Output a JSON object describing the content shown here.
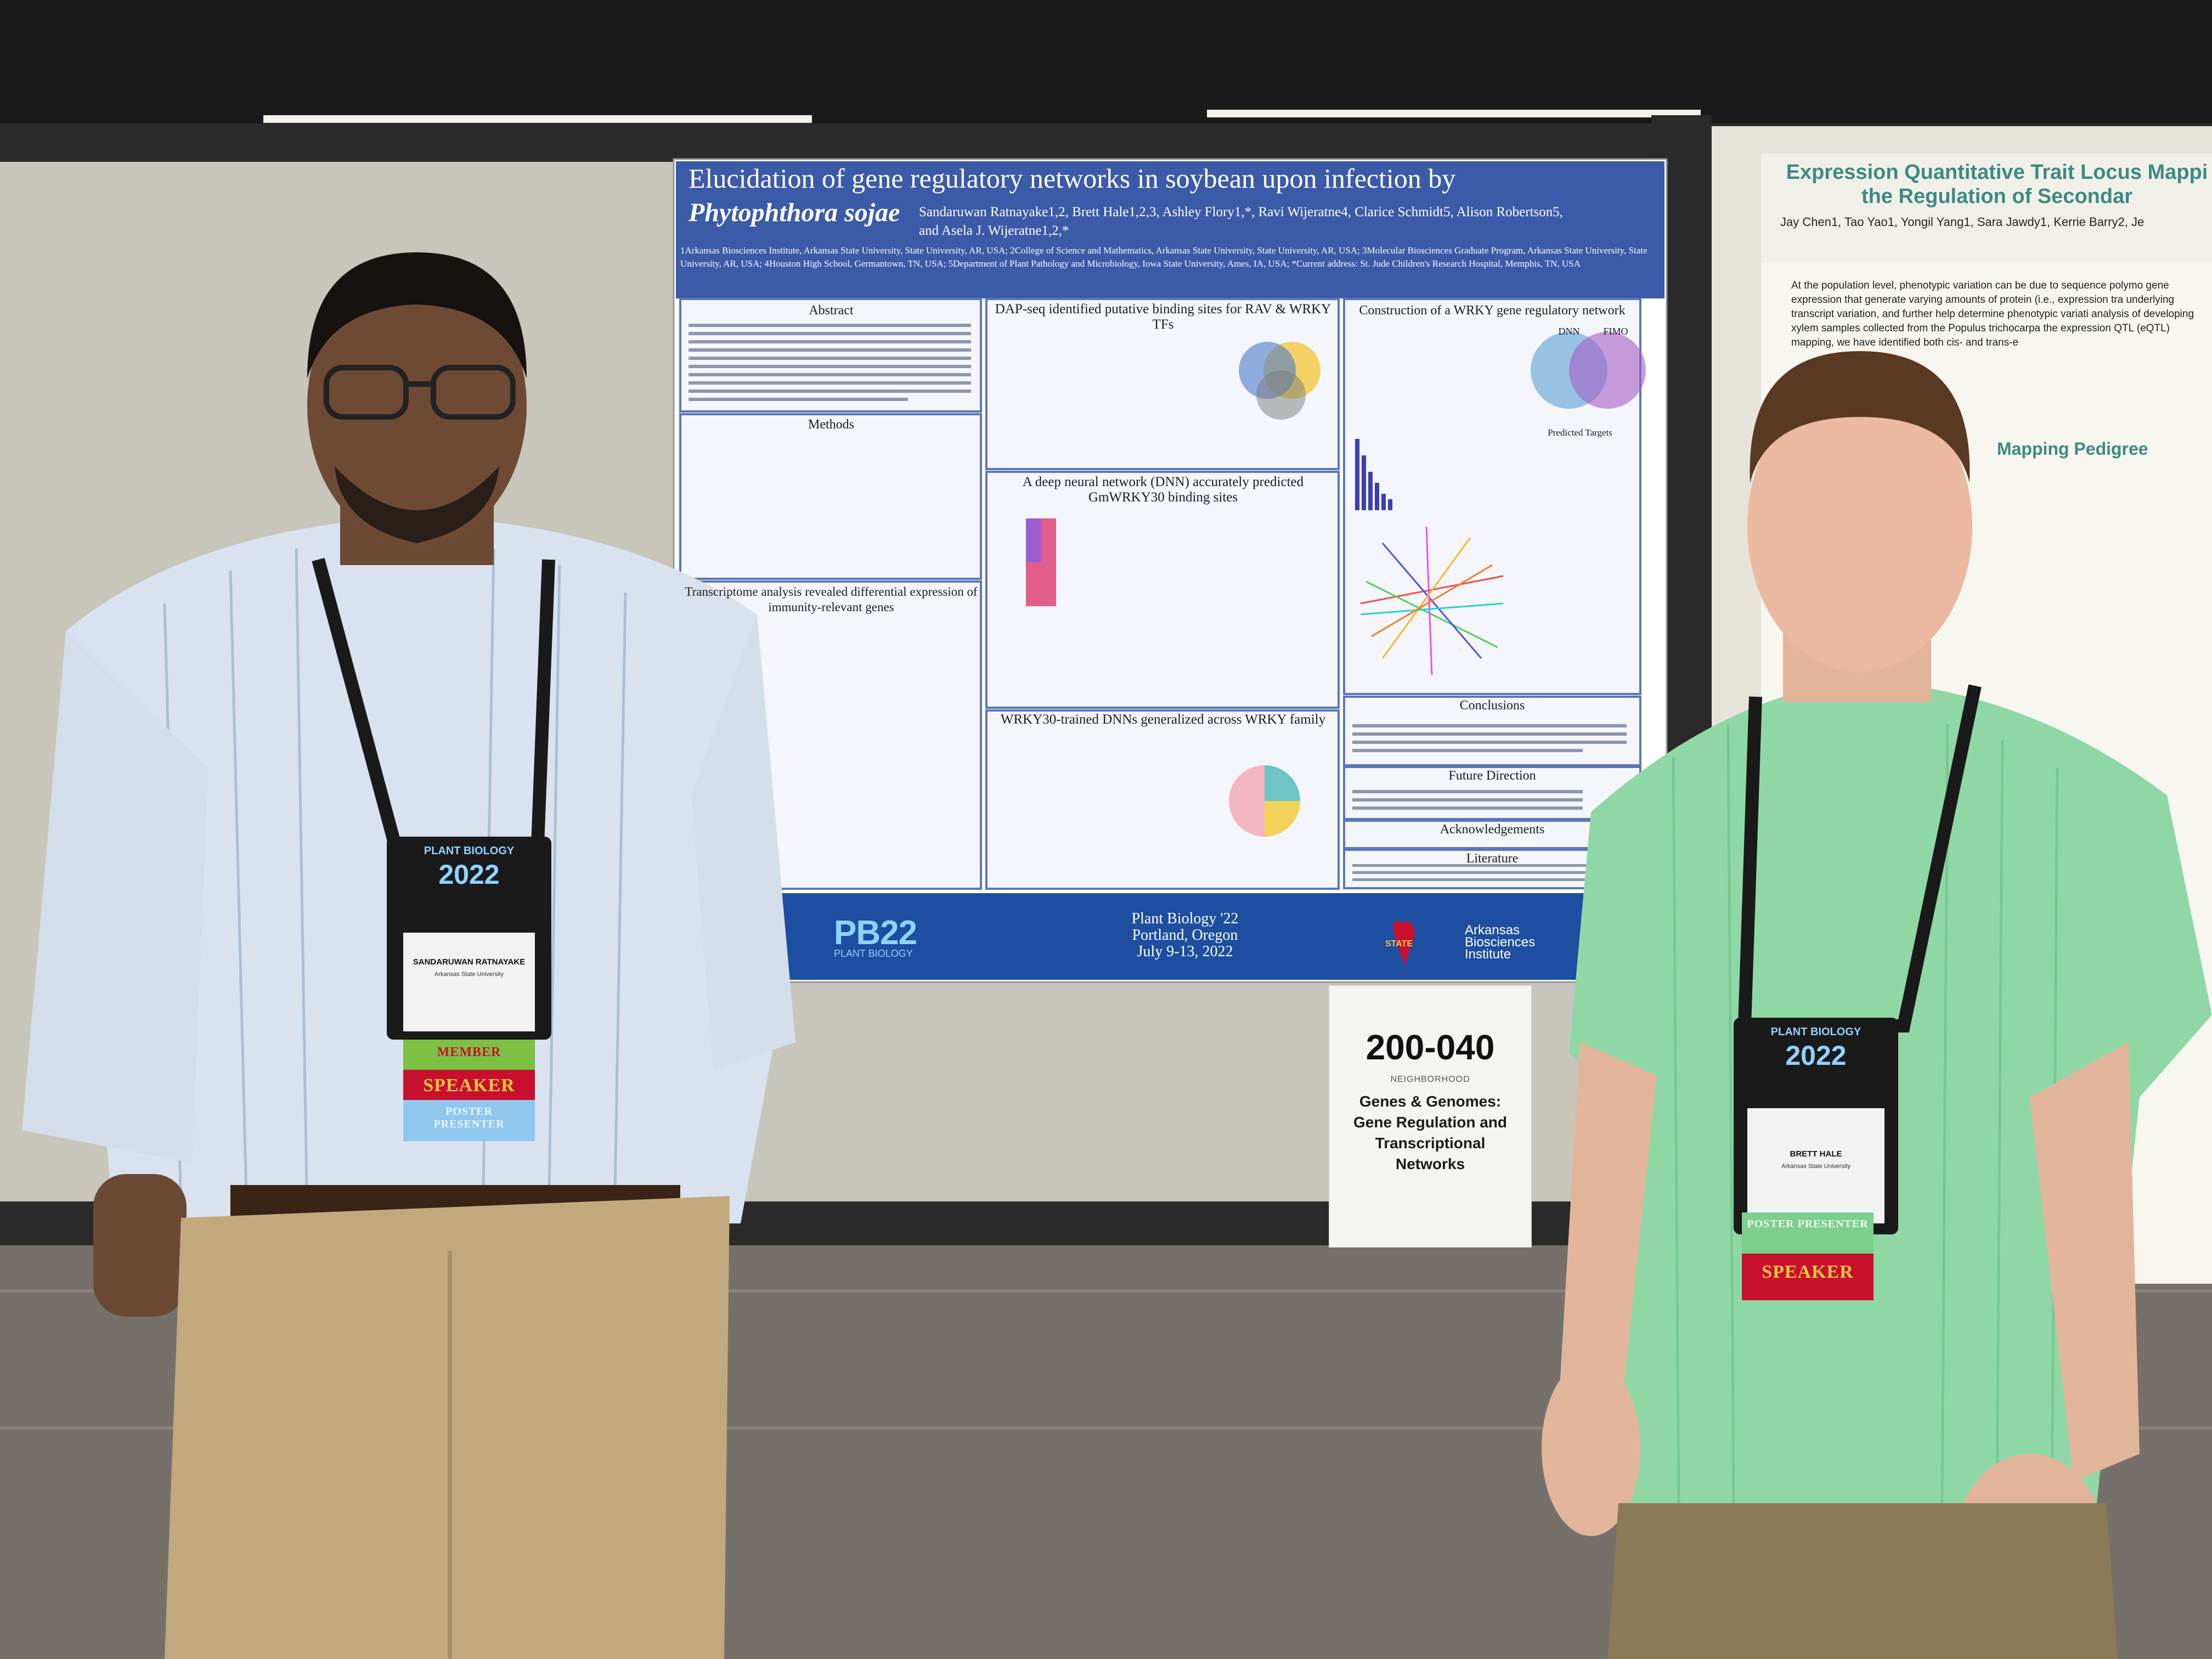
{
  "poster": {
    "title_line1": "Elucidation of gene regulatory networks in soybean upon infection by",
    "title_italic": "Phytophthora sojae",
    "authors_line1": "Sandaruwan Ratnayake1,2, Brett Hale1,2,3, Ashley Flory1,*, Ravi Wijeratne4, Clarice Schmidt5, Alison Robertson5,",
    "authors_line2": "and Asela J. Wijeratne1,2,*",
    "affiliations": "1Arkansas Biosciences Institute, Arkansas State University, State University, AR, USA; 2College of Science and Mathematics, Arkansas State University, State University, AR, USA; 3Molecular Biosciences Graduate Program, Arkansas State University, State University, AR, USA; 4Houston High School, Germantown, TN, USA; 5Department of Plant Pathology and Microbiology, Iowa State University, Ames, IA, USA; *Current address: St. Jude Children's Research Hospital, Memphis, TN, USA",
    "sections": {
      "abstract": "Abstract",
      "methods": "Methods",
      "transcriptome": "Transcriptome analysis revealed differential expression of immunity-relevant genes",
      "dapseq": "DAP-seq identified putative binding sites for RAV & WRKY TFs",
      "dnn": "A deep neural network (DNN) accurately predicted GmWRKY30 binding sites",
      "generalized": "WRKY30-trained DNNs generalized across WRKY family",
      "wrky_network": "Construction of a WRKY gene regulatory network",
      "conclusions": "Conclusions",
      "future": "Future Direction",
      "acknowledgements": "Acknowledgements",
      "literature": "Literature"
    },
    "venn_labels": [
      "DNN",
      "FIMO"
    ],
    "predicted_targets": "Predicted Targets",
    "footer": {
      "logo": "PB22",
      "logo_sub": "PLANT BIOLOGY",
      "conference": "Plant Biology '22",
      "location": "Portland, Oregon",
      "dates": "July 9-13, 2022",
      "state_logo": "STATE",
      "institute_line1": "Arkansas",
      "institute_line2": "Biosciences",
      "institute_line3": "Institute"
    }
  },
  "sign": {
    "number": "200-040",
    "neighborhood": "NEIGHBORHOOD",
    "topic_line1": "Genes & Genomes:",
    "topic_line2": "Gene Regulation and",
    "topic_line3": "Transcriptional",
    "topic_line4": "Networks"
  },
  "right_poster": {
    "title_line1": "Expression Quantitative Trait Locus Mappi",
    "title_line2": "the Regulation of Secondar",
    "authors": "Jay Chen1, Tao Yao1, Yongil Yang1, Sara Jawdy1, Kerrie Barry2, Je",
    "section": "Mapping Pedigree",
    "body": "At the population level, phenotypic variation can be due to sequence polymo gene expression that generate varying amounts of protein (i.e., expression tra underlying transcript variation, and further help determine phenotypic variati analysis of developing xylem samples collected from the Populus trichocarpa the expression QTL (eQTL) mapping, we have identified both cis- and trans-e"
  },
  "badges": {
    "left": {
      "header_year": "2022",
      "header_title": "PLANT BIOLOGY",
      "name": "SANDARUWAN RATNAYAKE",
      "org": "Arkansas State University",
      "ribbons": [
        "MEMBER",
        "SPEAKER",
        "POSTER PRESENTER"
      ]
    },
    "right": {
      "header_year": "2022",
      "header_title": "PLANT BIOLOGY",
      "name": "BRETT HALE",
      "org": "Arkansas State University",
      "ribbons": [
        "POSTER PRESENTER",
        "SPEAKER"
      ]
    }
  },
  "colors": {
    "poster_header": "#3b5aa8",
    "poster_footer": "#1d4ea0",
    "right_title": "#3d8a84",
    "wall": "#c9c6bd",
    "floor": "#6f6b64"
  }
}
